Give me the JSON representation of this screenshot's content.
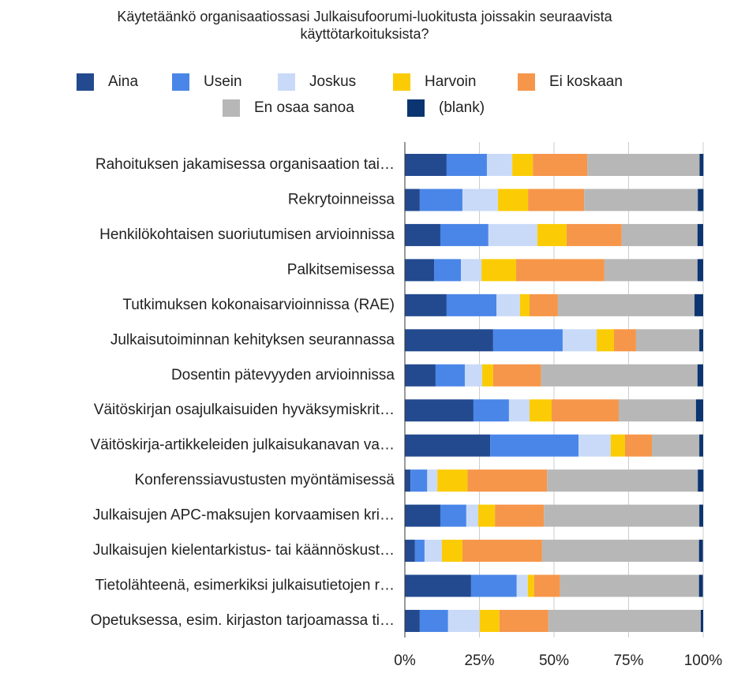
{
  "chart_data": {
    "type": "stacked_bar_horizontal",
    "title": "Käytetäänkö organisaatiossasi Julkaisufoorumi-luokitusta joissakin seuraavista käyttötarkoituksista?",
    "categories": [
      "Rahoituksen jakamisessa organisaation tai…",
      "Rekrytoinneissa",
      "Henkilökohtaisen suoriutumisen arvioinnissa",
      "Palkitsemisessa",
      "Tutkimuksen kokonaisarvioinnissa (RAE)",
      "Julkaisutoiminnan kehityksen seurannassa",
      "Dosentin pätevyyden arvioinnissa",
      "Väitöskirjan osajulkaisuiden hyväksymiskrit…",
      "Väitöskirja-artikkeleiden julkaisukanavan va…",
      "Konferenssiavustusten myöntämisessä",
      "Julkaisujen APC-maksujen korvaamisen kri…",
      "Julkaisujen kielentarkistus- tai käännöskust…",
      "Tietolähteenä, esimerkiksi julkaisutietojen r…",
      "Opetuksessa, esim. kirjaston tarjoamassa ti…"
    ],
    "series": [
      {
        "name": "Aina",
        "color": "#234a8f",
        "values": [
          14.0,
          5.0,
          11.9,
          9.8,
          14.0,
          29.6,
          10.3,
          23.0,
          28.6,
          1.9,
          11.9,
          3.4,
          22.2,
          5.0
        ]
      },
      {
        "name": "Usein",
        "color": "#4a86e8",
        "values": [
          13.5,
          14.3,
          16.1,
          9.0,
          16.7,
          23.3,
          9.8,
          11.9,
          29.6,
          5.6,
          8.7,
          3.2,
          15.3,
          9.5
        ]
      },
      {
        "name": "Joskus",
        "color": "#c9daf8",
        "values": [
          8.5,
          11.9,
          16.4,
          6.9,
          7.9,
          11.4,
          5.8,
          6.9,
          10.8,
          3.4,
          4.0,
          5.8,
          3.7,
          10.6
        ]
      },
      {
        "name": "Harvoin",
        "color": "#fbcc05",
        "values": [
          6.9,
          10.1,
          9.8,
          11.6,
          3.2,
          5.8,
          3.7,
          7.4,
          4.8,
          10.1,
          5.6,
          6.9,
          2.1,
          6.6
        ]
      },
      {
        "name": "Ei koskaan",
        "color": "#f6964a",
        "values": [
          18.3,
          18.8,
          18.5,
          29.6,
          9.5,
          7.4,
          16.1,
          22.5,
          9.0,
          26.7,
          16.4,
          26.7,
          8.7,
          16.4
        ]
      },
      {
        "name": "En osaa sanoa",
        "color": "#b7b7b7",
        "values": [
          37.6,
          38.1,
          25.4,
          31.2,
          45.8,
          21.2,
          52.4,
          25.9,
          15.9,
          50.5,
          52.1,
          52.6,
          46.6,
          51.1
        ]
      },
      {
        "name": "(blank)",
        "color": "#0b3470",
        "values": [
          1.3,
          1.9,
          1.9,
          1.9,
          2.9,
          1.3,
          1.9,
          2.4,
          1.3,
          1.9,
          1.3,
          1.3,
          1.3,
          0.8
        ]
      }
    ],
    "xlim": [
      0,
      100
    ],
    "xticks": [
      {
        "value": 0,
        "label": "0%"
      },
      {
        "value": 25,
        "label": "25%"
      },
      {
        "value": 50,
        "label": "50%"
      },
      {
        "value": 75,
        "label": "75%"
      },
      {
        "value": 100,
        "label": "100%"
      }
    ],
    "grid": true
  }
}
